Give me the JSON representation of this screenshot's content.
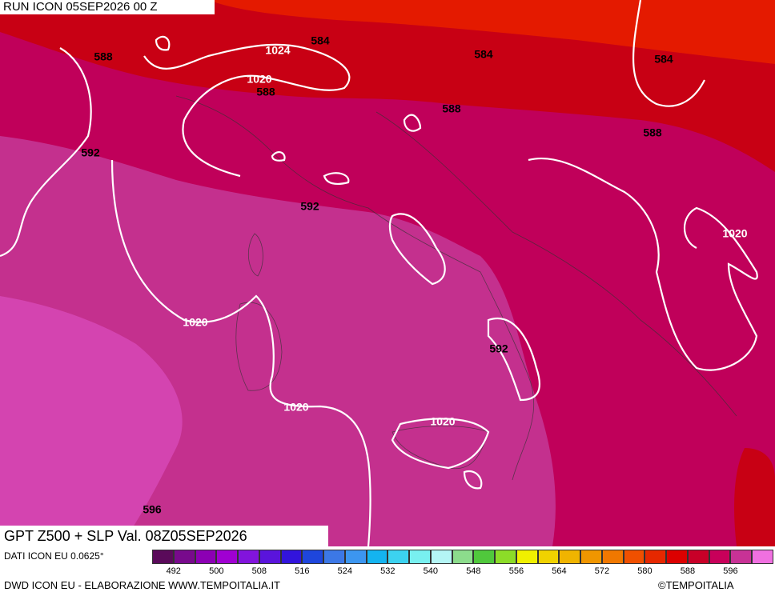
{
  "header": {
    "run": "RUN ICON 05SEP2026 00 Z"
  },
  "map": {
    "contour_labels": [
      "588",
      "1024",
      "584",
      "1020",
      "588",
      "584",
      "584",
      "588",
      "588",
      "592",
      "592",
      "1020",
      "1020",
      "592",
      "1020",
      "1020",
      "596"
    ]
  },
  "footer": {
    "title": "GPT Z500 + SLP Val. 08Z05SEP2026",
    "source": "DATI ICON EU 0.0625°",
    "credit": "DWD ICON EU - ELABORAZIONE WWW.TEMPOITALIA.IT",
    "copyright": "©TEMPOITALIA"
  },
  "legend": {
    "colors": [
      "#5a0a5a",
      "#780a8c",
      "#8c00b4",
      "#a000d2",
      "#8214dc",
      "#5a14dc",
      "#3214dc",
      "#1e46dc",
      "#3c78e6",
      "#3c96f0",
      "#14b4f0",
      "#3cd2f0",
      "#78f0f0",
      "#b4f5f5",
      "#8cdc8c",
      "#50c83c",
      "#8cdc28",
      "#f0f000",
      "#f0d200",
      "#f0b400",
      "#f09600",
      "#f07800",
      "#f05000",
      "#e62800",
      "#dc0000",
      "#c80028",
      "#c8005a",
      "#c83296",
      "#f070e0"
    ],
    "labels": [
      "492",
      "500",
      "508",
      "516",
      "524",
      "532",
      "540",
      "548",
      "556",
      "564",
      "572",
      "580",
      "588",
      "596"
    ]
  }
}
